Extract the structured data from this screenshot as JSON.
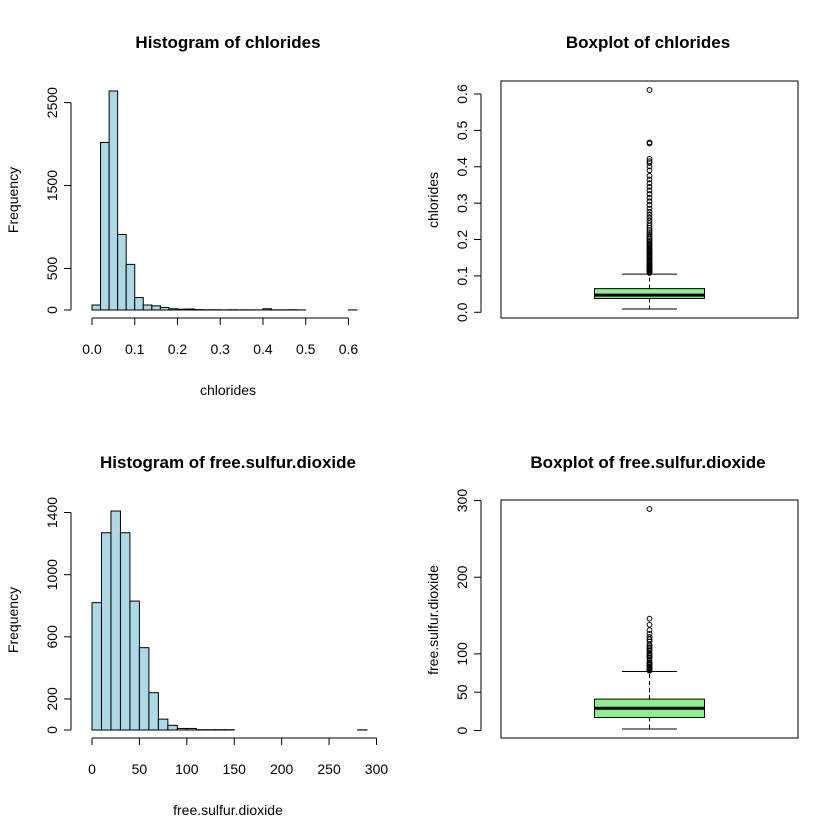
{
  "colors": {
    "histogram_fill": "#add8e6",
    "boxplot_fill": "#90ee90",
    "stroke": "#000000",
    "background": "#ffffff"
  },
  "chart_data": [
    {
      "id": "hist-chlorides",
      "type": "bar",
      "subtype": "histogram",
      "title": "Histogram of chlorides",
      "xlabel": "chlorides",
      "ylabel": "Frequency",
      "bin_width": 0.02,
      "bin_edges": [
        0.0,
        0.02,
        0.04,
        0.06,
        0.08,
        0.1,
        0.12,
        0.14,
        0.16,
        0.18,
        0.2,
        0.22,
        0.24,
        0.26,
        0.28,
        0.3,
        0.32,
        0.34,
        0.36,
        0.38,
        0.4,
        0.42,
        0.44,
        0.46,
        0.48,
        0.5,
        0.52,
        0.54,
        0.56,
        0.58,
        0.6,
        0.62
      ],
      "values": [
        60,
        2020,
        2640,
        910,
        550,
        150,
        60,
        50,
        30,
        15,
        10,
        12,
        5,
        3,
        3,
        2,
        3,
        2,
        2,
        1,
        15,
        2,
        2,
        3,
        1,
        0,
        0,
        0,
        0,
        0,
        1
      ],
      "xlim": [
        0.0,
        0.62
      ],
      "ylim": [
        0,
        2640
      ],
      "x_ticks": [
        0.0,
        0.1,
        0.2,
        0.3,
        0.4,
        0.5,
        0.6
      ],
      "x_tick_labels": [
        "0.0",
        "0.1",
        "0.2",
        "0.3",
        "0.4",
        "0.5",
        "0.6"
      ],
      "y_ticks": [
        0,
        500,
        1500,
        2500
      ],
      "y_tick_labels": [
        "0",
        "500",
        "1500",
        "2500"
      ]
    },
    {
      "id": "box-chlorides",
      "type": "boxplot",
      "title": "Boxplot of chlorides",
      "ylabel": "chlorides",
      "stats": {
        "lower_whisker": 0.009,
        "q1": 0.038,
        "median": 0.047,
        "q3": 0.065,
        "upper_whisker": 0.105
      },
      "outliers": [
        0.108,
        0.11,
        0.112,
        0.114,
        0.116,
        0.118,
        0.12,
        0.122,
        0.124,
        0.126,
        0.128,
        0.13,
        0.133,
        0.136,
        0.139,
        0.142,
        0.145,
        0.148,
        0.151,
        0.154,
        0.157,
        0.16,
        0.163,
        0.166,
        0.169,
        0.172,
        0.175,
        0.178,
        0.181,
        0.184,
        0.187,
        0.19,
        0.194,
        0.198,
        0.202,
        0.206,
        0.21,
        0.215,
        0.22,
        0.226,
        0.232,
        0.238,
        0.245,
        0.252,
        0.26,
        0.268,
        0.276,
        0.285,
        0.295,
        0.305,
        0.315,
        0.325,
        0.335,
        0.345,
        0.355,
        0.365,
        0.375,
        0.39,
        0.401,
        0.41,
        0.415,
        0.422,
        0.464,
        0.467,
        0.611
      ],
      "ylim": [
        0.009,
        0.611
      ],
      "y_ticks": [
        0.0,
        0.1,
        0.2,
        0.3,
        0.4,
        0.5,
        0.6
      ],
      "y_tick_labels": [
        "0.0",
        "0.1",
        "0.2",
        "0.3",
        "0.4",
        "0.5",
        "0.6"
      ]
    },
    {
      "id": "hist-free-sulfur-dioxide",
      "type": "bar",
      "subtype": "histogram",
      "title": "Histogram of free.sulfur.dioxide",
      "xlabel": "free.sulfur.dioxide",
      "ylabel": "Frequency",
      "bin_width": 10,
      "bin_edges": [
        0,
        10,
        20,
        30,
        40,
        50,
        60,
        70,
        80,
        90,
        100,
        110,
        120,
        130,
        140,
        150,
        160,
        170,
        180,
        190,
        200,
        210,
        220,
        230,
        240,
        250,
        260,
        270,
        280,
        290
      ],
      "values": [
        820,
        1270,
        1410,
        1270,
        830,
        530,
        240,
        70,
        30,
        10,
        10,
        2,
        2,
        2,
        2,
        0,
        0,
        0,
        0,
        0,
        0,
        0,
        0,
        0,
        0,
        0,
        0,
        0,
        1
      ],
      "xlim": [
        0,
        290
      ],
      "ylim": [
        0,
        1410
      ],
      "x_ticks": [
        0,
        50,
        100,
        150,
        200,
        250,
        300
      ],
      "x_tick_labels": [
        "0",
        "50",
        "100",
        "150",
        "200",
        "250",
        "300"
      ],
      "y_ticks": [
        0,
        200,
        600,
        1000,
        1400
      ],
      "y_tick_labels": [
        "0",
        "200",
        "600",
        "1000",
        "1400"
      ]
    },
    {
      "id": "box-free-sulfur-dioxide",
      "type": "boxplot",
      "title": "Boxplot of free.sulfur.dioxide",
      "ylabel": "free.sulfur.dioxide",
      "stats": {
        "lower_whisker": 2,
        "q1": 17,
        "median": 29,
        "q3": 41,
        "upper_whisker": 77
      },
      "outliers": [
        78,
        79,
        80,
        81,
        82,
        83,
        85,
        86,
        87,
        88,
        89,
        92,
        95,
        97,
        99,
        101,
        104,
        106,
        108,
        110,
        112,
        116,
        119,
        122,
        126,
        131,
        138,
        146,
        289
      ],
      "ylim": [
        2,
        289
      ],
      "y_ticks": [
        0,
        50,
        100,
        200,
        300
      ],
      "y_tick_labels": [
        "0",
        "50",
        "100",
        "200",
        "300"
      ]
    }
  ]
}
